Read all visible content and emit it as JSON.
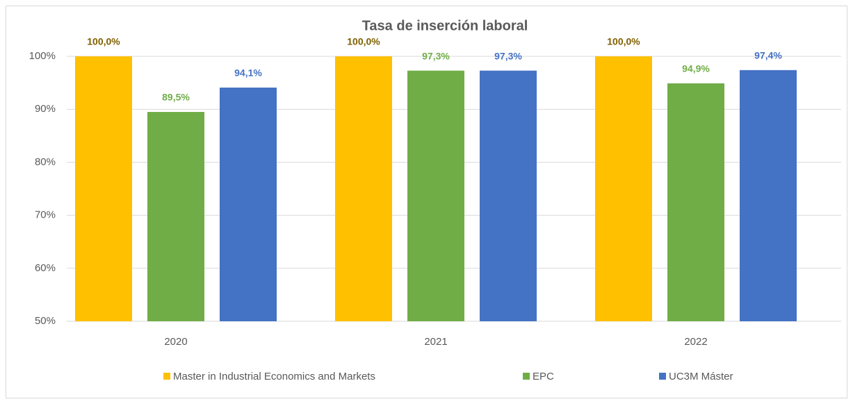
{
  "chart_data": {
    "type": "bar",
    "title": "Tasa de inserción laboral",
    "categories": [
      "2020",
      "2021",
      "2022"
    ],
    "series": [
      {
        "name": "Master in Industrial Economics and Markets",
        "color": "#ffc000",
        "label_color": "#7f6000",
        "values": [
          100,
          100,
          100
        ],
        "value_labels": [
          "100,0%",
          "100,0%",
          "100,0%"
        ]
      },
      {
        "name": "EPC",
        "color": "#70ad47",
        "label_color": "#70ad47",
        "values": [
          89.5,
          97.3,
          94.9
        ],
        "value_labels": [
          "89,5%",
          "97,3%",
          "94,9%"
        ]
      },
      {
        "name": "UC3M Máster",
        "color": "#4472c4",
        "label_color": "#4472c4",
        "values": [
          94.1,
          97.3,
          97.4
        ],
        "value_labels": [
          "94,1%",
          "97,3%",
          "97,4%"
        ]
      }
    ],
    "ylim": [
      50,
      100
    ],
    "yticks": [
      {
        "value": 50,
        "label": "50%"
      },
      {
        "value": 60,
        "label": "60%"
      },
      {
        "value": 70,
        "label": "70%"
      },
      {
        "value": 80,
        "label": "80%"
      },
      {
        "value": 90,
        "label": "90%"
      },
      {
        "value": 100,
        "label": "100%"
      }
    ],
    "grid": true,
    "legend": "bottom"
  }
}
